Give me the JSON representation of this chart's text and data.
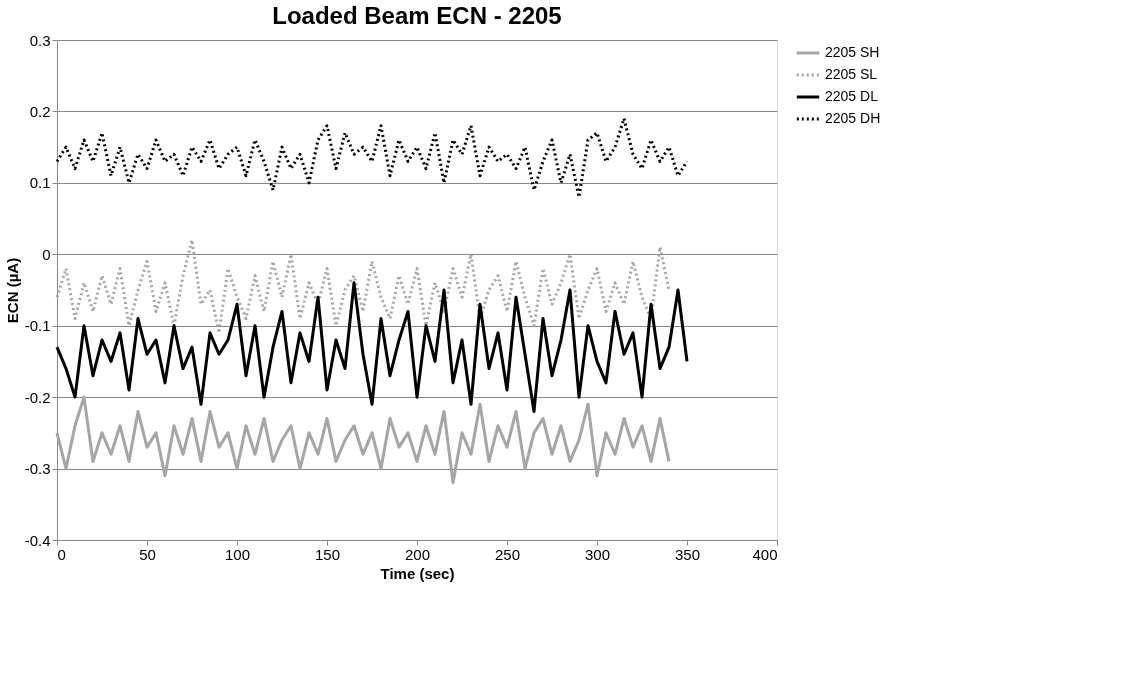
{
  "chart_data": {
    "type": "line",
    "title": "Loaded Beam ECN - 2205",
    "xlabel": "Time (sec)",
    "ylabel": "ECN (µA)",
    "x": [
      0,
      5,
      10,
      15,
      20,
      25,
      30,
      35,
      40,
      45,
      50,
      55,
      60,
      65,
      70,
      75,
      80,
      85,
      90,
      95,
      100,
      105,
      110,
      115,
      120,
      125,
      130,
      135,
      140,
      145,
      150,
      155,
      160,
      165,
      170,
      175,
      180,
      185,
      190,
      195,
      200,
      205,
      210,
      215,
      220,
      225,
      230,
      235,
      240,
      245,
      250,
      255,
      260,
      265,
      270,
      275,
      280,
      285,
      290,
      295,
      300,
      305,
      310,
      315,
      320,
      325,
      330,
      335,
      340,
      345,
      350
    ],
    "series": [
      {
        "name": "2205 SH",
        "color": "#a6a6a6",
        "line_style": "solid",
        "values": [
          -0.25,
          -0.3,
          -0.24,
          -0.2,
          -0.29,
          -0.25,
          -0.28,
          -0.24,
          -0.29,
          -0.22,
          -0.27,
          -0.25,
          -0.31,
          -0.24,
          -0.28,
          -0.23,
          -0.29,
          -0.22,
          -0.27,
          -0.25,
          -0.3,
          -0.24,
          -0.28,
          -0.23,
          -0.29,
          -0.26,
          -0.24,
          -0.3,
          -0.25,
          -0.28,
          -0.23,
          -0.29,
          -0.26,
          -0.24,
          -0.28,
          -0.25,
          -0.3,
          -0.23,
          -0.27,
          -0.25,
          -0.29,
          -0.24,
          -0.28,
          -0.22,
          -0.32,
          -0.25,
          -0.28,
          -0.21,
          -0.29,
          -0.24,
          -0.27,
          -0.22,
          -0.3,
          -0.25,
          -0.23,
          -0.28,
          -0.24,
          -0.29,
          -0.26,
          -0.21,
          -0.31,
          -0.25,
          -0.28,
          -0.23,
          -0.27,
          -0.24,
          -0.29,
          -0.23,
          -0.29,
          null,
          null
        ]
      },
      {
        "name": "2205 SL",
        "color": "#a6a6a6",
        "line_style": "dotted",
        "values": [
          -0.06,
          -0.02,
          -0.09,
          -0.04,
          -0.08,
          -0.03,
          -0.07,
          -0.02,
          -0.1,
          -0.05,
          -0.01,
          -0.08,
          -0.04,
          -0.1,
          -0.03,
          0.02,
          -0.07,
          -0.05,
          -0.11,
          -0.02,
          -0.06,
          -0.09,
          -0.03,
          -0.08,
          -0.01,
          -0.06,
          0.0,
          -0.09,
          -0.04,
          -0.07,
          -0.02,
          -0.1,
          -0.05,
          -0.03,
          -0.08,
          -0.01,
          -0.06,
          -0.09,
          -0.03,
          -0.07,
          -0.02,
          -0.1,
          -0.04,
          -0.08,
          -0.02,
          -0.06,
          0.0,
          -0.09,
          -0.05,
          -0.03,
          -0.08,
          -0.01,
          -0.06,
          -0.1,
          -0.02,
          -0.07,
          -0.04,
          0.0,
          -0.09,
          -0.05,
          -0.02,
          -0.08,
          -0.04,
          -0.07,
          -0.01,
          -0.06,
          -0.09,
          0.01,
          -0.05,
          null,
          null
        ]
      },
      {
        "name": "2205 DL",
        "color": "#000000",
        "line_style": "solid",
        "values": [
          -0.13,
          -0.16,
          -0.2,
          -0.1,
          -0.17,
          -0.12,
          -0.15,
          -0.11,
          -0.19,
          -0.09,
          -0.14,
          -0.12,
          -0.18,
          -0.1,
          -0.16,
          -0.13,
          -0.21,
          -0.11,
          -0.14,
          -0.12,
          -0.07,
          -0.17,
          -0.1,
          -0.2,
          -0.13,
          -0.08,
          -0.18,
          -0.11,
          -0.15,
          -0.06,
          -0.19,
          -0.12,
          -0.16,
          -0.04,
          -0.14,
          -0.21,
          -0.09,
          -0.17,
          -0.12,
          -0.08,
          -0.2,
          -0.1,
          -0.15,
          -0.05,
          -0.18,
          -0.12,
          -0.21,
          -0.07,
          -0.16,
          -0.11,
          -0.19,
          -0.06,
          -0.14,
          -0.22,
          -0.09,
          -0.17,
          -0.12,
          -0.05,
          -0.2,
          -0.1,
          -0.15,
          -0.18,
          -0.08,
          -0.14,
          -0.11,
          -0.2,
          -0.07,
          -0.16,
          -0.13,
          -0.05,
          -0.15
        ]
      },
      {
        "name": "2205 DH",
        "color": "#000000",
        "line_style": "dotted",
        "values": [
          0.13,
          0.15,
          0.12,
          0.16,
          0.13,
          0.17,
          0.11,
          0.15,
          0.1,
          0.14,
          0.12,
          0.16,
          0.13,
          0.14,
          0.11,
          0.15,
          0.13,
          0.16,
          0.12,
          0.14,
          0.15,
          0.11,
          0.16,
          0.13,
          0.09,
          0.15,
          0.12,
          0.14,
          0.1,
          0.16,
          0.18,
          0.12,
          0.17,
          0.14,
          0.15,
          0.13,
          0.18,
          0.11,
          0.16,
          0.13,
          0.15,
          0.12,
          0.17,
          0.1,
          0.16,
          0.14,
          0.18,
          0.11,
          0.15,
          0.13,
          0.14,
          0.12,
          0.15,
          0.09,
          0.13,
          0.16,
          0.1,
          0.14,
          0.08,
          0.16,
          0.17,
          0.13,
          0.15,
          0.19,
          0.14,
          0.12,
          0.16,
          0.13,
          0.15,
          0.11,
          0.13
        ]
      }
    ],
    "xlim": [
      0,
      400
    ],
    "xticks": [
      0,
      50,
      100,
      150,
      200,
      250,
      300,
      350,
      400
    ],
    "ylim": [
      -0.4,
      0.3
    ],
    "yticks": [
      -0.4,
      -0.3,
      -0.2,
      -0.1,
      0,
      0.1,
      0.2,
      0.3
    ],
    "grid": "y",
    "legend": "right"
  }
}
